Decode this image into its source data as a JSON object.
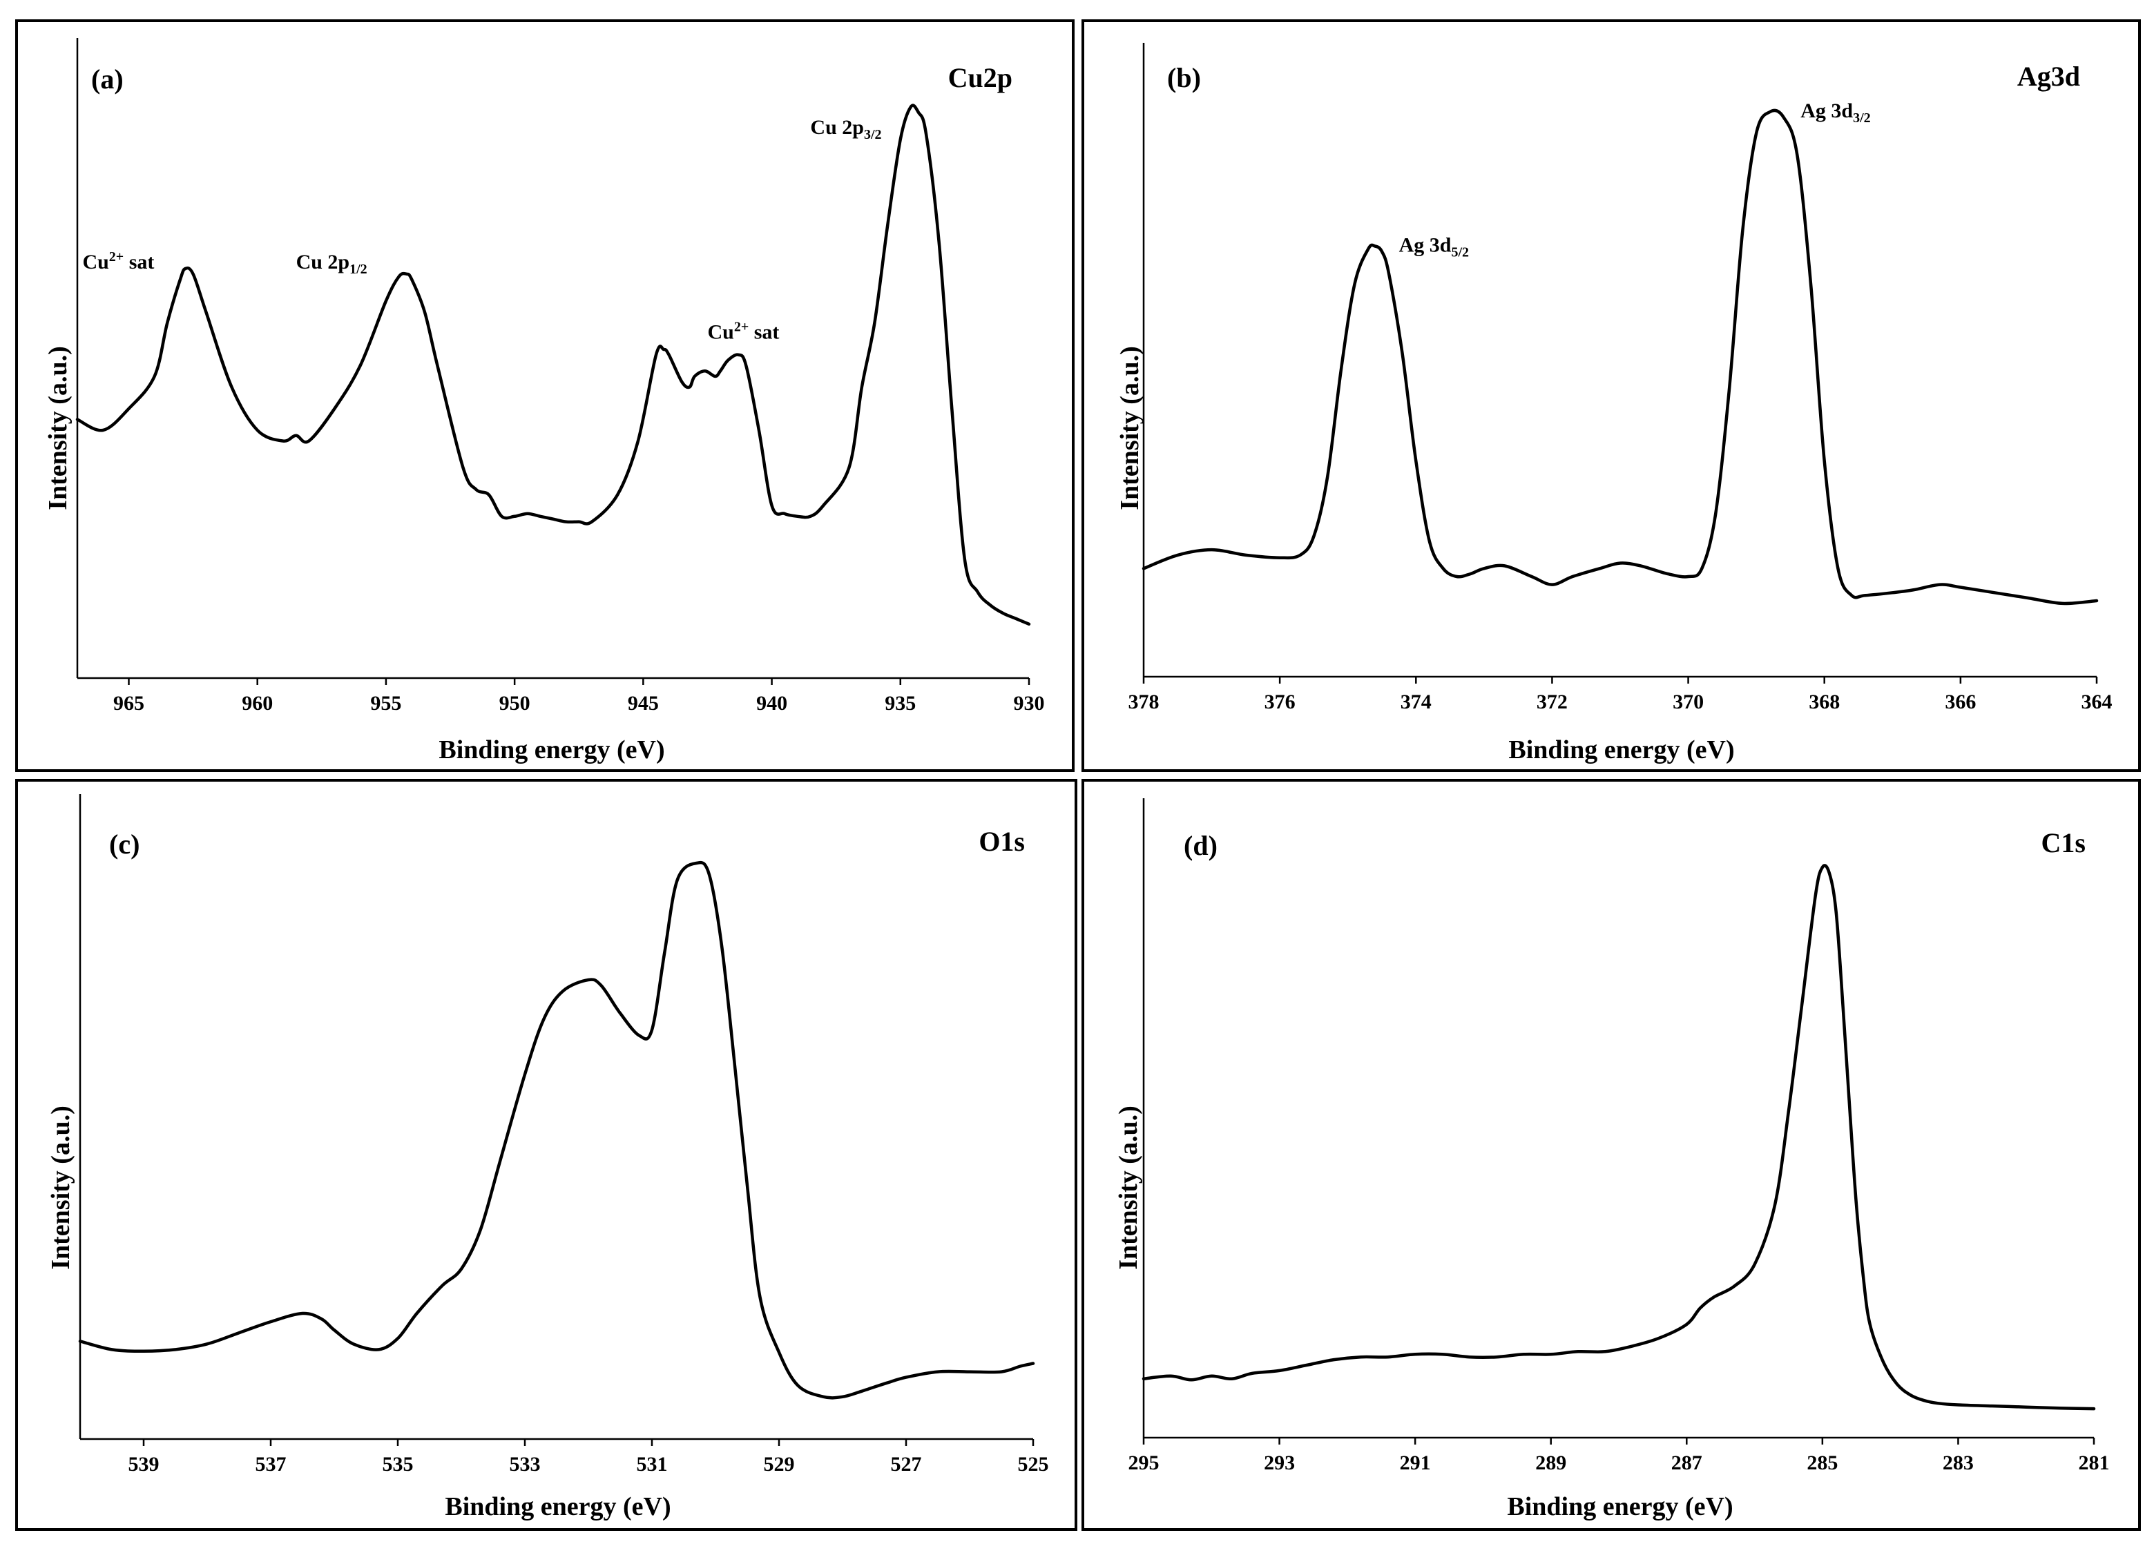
{
  "chart_data": [
    {
      "type": "line",
      "panel_tag": "(a)",
      "title": "Cu2p",
      "xlabel": "Binding energy (eV)",
      "ylabel": "Intensity (a.u.)",
      "xlim": [
        967,
        930
      ],
      "ylim": [
        0,
        100
      ],
      "xticks": [
        "965",
        "960",
        "955",
        "950",
        "945",
        "940",
        "935",
        "930"
      ],
      "tick_values": [
        965,
        960,
        955,
        950,
        945,
        940,
        935,
        930
      ],
      "x": [
        967,
        966,
        965,
        964,
        963.5,
        963,
        962.8,
        962.5,
        962,
        961,
        960,
        959,
        958.5,
        958,
        957,
        956,
        955,
        954.5,
        954.2,
        954,
        953.5,
        953,
        952,
        951.5,
        951,
        950.5,
        950,
        949.5,
        949,
        948.5,
        948,
        947.5,
        947,
        946,
        945.2,
        944.5,
        944.2,
        944,
        943.5,
        943.2,
        943,
        942.6,
        942.2,
        942,
        941.7,
        941.3,
        941,
        940.5,
        940,
        939.5,
        939,
        938.5,
        938,
        937,
        936.5,
        936,
        935.5,
        935,
        934.6,
        934.3,
        934,
        933.5,
        933,
        932.5,
        932,
        931.5,
        931,
        930.5,
        930
      ],
      "y": [
        42,
        40,
        44,
        50,
        60,
        68,
        70,
        69,
        62,
        48,
        40,
        38,
        39,
        38,
        44,
        52,
        64,
        68.5,
        69,
        68,
        62,
        52,
        33,
        29,
        28,
        24,
        24,
        24.5,
        24,
        23.5,
        23,
        23,
        23,
        28,
        38,
        54,
        55,
        54,
        49,
        48,
        50,
        51,
        50,
        51,
        53,
        54,
        52,
        40,
        26,
        24.5,
        24,
        24,
        26,
        33,
        48,
        60,
        78,
        94,
        100,
        99,
        95,
        75,
        44,
        16,
        10,
        7.5,
        6,
        5,
        4
      ],
      "annotations": [
        {
          "text": "Cu",
          "sup": "2+",
          "rest": " sat",
          "x": 966.8,
          "y": 70
        },
        {
          "text": "Cu 2p",
          "sub": "1/2",
          "rest": "",
          "x": 958.5,
          "y": 70
        },
        {
          "text": "Cu",
          "sup": "2+",
          "rest": " sat",
          "x": 942.5,
          "y": 57
        },
        {
          "text": "Cu 2p",
          "sub": "3/2",
          "rest": "",
          "x": 938.5,
          "y": 95
        }
      ]
    },
    {
      "type": "line",
      "panel_tag": "(b)",
      "title": "Ag3d",
      "xlabel": "Binding energy (eV)",
      "ylabel": "Intensity (a.u.)",
      "xlim": [
        378,
        364
      ],
      "ylim": [
        0,
        100
      ],
      "xticks": [
        "378",
        "376",
        "374",
        "372",
        "370",
        "368",
        "366",
        "364"
      ],
      "tick_values": [
        378,
        376,
        374,
        372,
        370,
        368,
        366,
        364
      ],
      "x": [
        378,
        377.5,
        377,
        376.5,
        376,
        375.7,
        375.5,
        375.3,
        375.1,
        374.9,
        374.7,
        374.6,
        374.5,
        374.4,
        374.2,
        374,
        373.8,
        373.6,
        373.4,
        373.2,
        373,
        372.7,
        372.3,
        372,
        371.7,
        371.3,
        371,
        370.7,
        370.3,
        370,
        369.8,
        369.6,
        369.4,
        369.2,
        369,
        368.8,
        368.6,
        368.4,
        368.2,
        368,
        367.8,
        367.6,
        367.4,
        367,
        366.7,
        366.3,
        366,
        365.5,
        365,
        364.5,
        364
      ],
      "y": [
        15,
        17.5,
        18.5,
        17.5,
        17,
        17.5,
        21,
        32,
        52,
        68,
        74.5,
        75,
        74,
        70,
        55,
        35,
        20,
        15,
        13.5,
        14,
        15,
        15.5,
        13.5,
        12,
        13.5,
        15,
        16,
        15.5,
        14,
        13.5,
        15,
        25,
        48,
        78,
        96,
        100,
        99,
        92,
        68,
        35,
        15,
        10,
        10,
        10.5,
        11,
        12,
        11.5,
        10.5,
        9.5,
        8.5,
        9
      ],
      "annotations": [
        {
          "text": "Ag 3d",
          "sub": "5/2",
          "rest": "",
          "x": 374.25,
          "y": 74
        },
        {
          "text": "Ag 3d",
          "sub": "3/2",
          "rest": "",
          "x": 368.35,
          "y": 99
        }
      ]
    },
    {
      "type": "line",
      "panel_tag": "(c)",
      "title": "O1s",
      "xlabel": "Binding energy (eV)",
      "ylabel": "Intensity (a.u.)",
      "xlim": [
        540,
        525
      ],
      "ylim": [
        0,
        100
      ],
      "xticks": [
        "539",
        "537",
        "535",
        "533",
        "531",
        "529",
        "527",
        "525"
      ],
      "tick_values": [
        539,
        537,
        535,
        533,
        531,
        529,
        527,
        525
      ],
      "x": [
        540,
        539.5,
        539,
        538.5,
        538,
        537.5,
        537,
        536.5,
        536.2,
        536,
        535.7,
        535.3,
        535,
        534.7,
        534.3,
        534,
        533.7,
        533.4,
        533,
        532.7,
        532.4,
        532,
        531.8,
        531.5,
        531.2,
        531,
        530.8,
        530.6,
        530.3,
        530.1,
        529.9,
        529.7,
        529.5,
        529.3,
        529,
        528.7,
        528.3,
        528,
        527.7,
        527.3,
        527,
        526.5,
        526,
        525.5,
        525.2,
        525
      ],
      "y": [
        14,
        12.5,
        12.2,
        12.5,
        13.5,
        15.5,
        17.5,
        19,
        18,
        16,
        13.5,
        12.5,
        14.5,
        19,
        24,
        27,
        34,
        46,
        62,
        72,
        77,
        79,
        78,
        73,
        69,
        70,
        84,
        97,
        100,
        98,
        85,
        64,
        42,
        22,
        12,
        6,
        4,
        4,
        5,
        6.5,
        7.5,
        8.5,
        8.5,
        8.5,
        9.5,
        10
      ],
      "annotations": []
    },
    {
      "type": "line",
      "panel_tag": "(d)",
      "title": "C1s",
      "xlabel": "Binding energy (eV)",
      "ylabel": "Intensity (a.u.)",
      "xlim": [
        295,
        281
      ],
      "ylim": [
        0,
        100
      ],
      "xticks": [
        "295",
        "293",
        "291",
        "289",
        "287",
        "285",
        "283",
        "281"
      ],
      "tick_values": [
        295,
        293,
        291,
        289,
        287,
        285,
        283,
        281
      ],
      "x": [
        295,
        294.6,
        294.3,
        294,
        293.7,
        293.4,
        293,
        292.6,
        292.2,
        291.8,
        291.4,
        291,
        290.6,
        290.2,
        289.8,
        289.4,
        289,
        288.6,
        288.2,
        287.8,
        287.4,
        287,
        286.8,
        286.6,
        286.3,
        286,
        285.7,
        285.5,
        285.3,
        285.1,
        285,
        284.9,
        284.8,
        284.7,
        284.6,
        284.5,
        284.4,
        284.3,
        284.1,
        283.9,
        283.7,
        283.5,
        283.3,
        283,
        282.5,
        282,
        281.5,
        281
      ],
      "y": [
        6,
        6.5,
        5.8,
        6.5,
        6,
        7,
        7.5,
        8.5,
        9.5,
        10,
        10,
        10.5,
        10.5,
        10,
        10,
        10.5,
        10.5,
        11,
        11,
        12,
        13.5,
        16,
        19,
        21,
        23,
        27,
        38,
        55,
        75,
        95,
        100,
        99,
        92,
        75,
        56,
        38,
        25,
        16,
        9,
        5,
        3,
        2,
        1.5,
        1.2,
        1,
        0.8,
        0.6,
        0.5
      ],
      "annotations": []
    }
  ]
}
